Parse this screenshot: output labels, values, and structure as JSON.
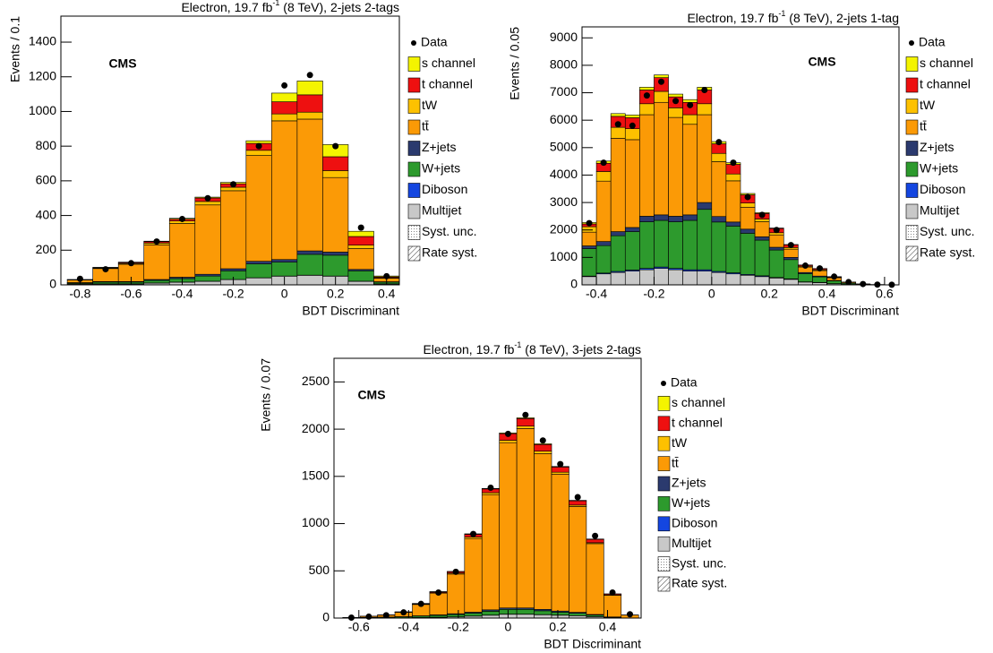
{
  "chart_data": [
    {
      "type": "histogram",
      "title": [
        "Electron, 19.7 fb",
        "-1",
        " (8 TeV), 2-jets 2-tags"
      ],
      "annotation": "CMS",
      "x_label": "BDT Discriminant",
      "y_label": "Events / 0.1",
      "bins": [
        -0.85,
        -0.75,
        -0.65,
        -0.55,
        -0.45,
        -0.35,
        -0.25,
        -0.15,
        -0.05,
        0.05,
        0.15,
        0.25,
        0.35,
        0.45
      ],
      "xlim": [
        -0.875,
        0.45
      ],
      "xticks": [
        -0.8,
        -0.6,
        -0.4,
        -0.2,
        0,
        0.2,
        0.4
      ],
      "ylim": [
        0,
        1550
      ],
      "yticks": [
        0,
        200,
        400,
        600,
        800,
        1000,
        1200,
        1400
      ],
      "data": {
        "name": "Data",
        "values": [
          35,
          90,
          125,
          250,
          380,
          500,
          580,
          800,
          1150,
          1210,
          800,
          330,
          50
        ]
      },
      "series": [
        {
          "name": "s channel",
          "color": "#f4f400",
          "values": [
            0,
            1,
            2,
            3,
            5,
            5,
            8,
            15,
            50,
            80,
            70,
            30,
            5
          ]
        },
        {
          "name": "t channel",
          "color": "#ee1010",
          "values": [
            1,
            3,
            5,
            8,
            10,
            20,
            20,
            40,
            70,
            100,
            80,
            50,
            5
          ]
        },
        {
          "name": "tW",
          "color": "#fdc100",
          "values": [
            2,
            3,
            5,
            10,
            15,
            20,
            20,
            30,
            40,
            40,
            40,
            20,
            3
          ]
        },
        {
          "name": "tt̄",
          "color": "#fb9a06",
          "values": [
            15,
            75,
            100,
            200,
            310,
            400,
            450,
            610,
            800,
            760,
            430,
            120,
            20
          ]
        },
        {
          "name": "Z+jets",
          "color": "#2b3a6e",
          "values": [
            2,
            3,
            3,
            5,
            8,
            10,
            12,
            15,
            15,
            20,
            18,
            8,
            2
          ]
        },
        {
          "name": "W+jets",
          "color": "#2d9a2d",
          "values": [
            5,
            10,
            10,
            15,
            20,
            30,
            50,
            80,
            80,
            120,
            120,
            60,
            10
          ]
        },
        {
          "name": "Diboson",
          "color": "#1446e0",
          "values": [
            1,
            1,
            1,
            1,
            1,
            1,
            1,
            1,
            1,
            1,
            1,
            1,
            1
          ]
        },
        {
          "name": "Multijet",
          "color": "#c8c8c8",
          "values": [
            5,
            5,
            5,
            10,
            15,
            20,
            30,
            40,
            50,
            55,
            50,
            20,
            5
          ]
        }
      ],
      "legend_extra": [
        "Syst. unc.",
        "Rate syst."
      ]
    },
    {
      "type": "histogram",
      "title": [
        "Electron, 19.7 fb",
        "-1",
        " (8 TeV), 2-jets 1-tag"
      ],
      "annotation": "CMS",
      "x_label": "BDT Discriminant",
      "y_label": "Events / 0.05",
      "bins": [
        -0.45,
        -0.4,
        -0.35,
        -0.3,
        -0.25,
        -0.2,
        -0.15,
        -0.1,
        -0.05,
        0,
        0.05,
        0.1,
        0.15,
        0.2,
        0.25,
        0.3,
        0.35,
        0.4,
        0.45,
        0.5,
        0.55,
        0.6,
        0.65
      ],
      "xlim": [
        -0.45,
        0.65
      ],
      "xticks": [
        -0.4,
        -0.2,
        0,
        0.2,
        0.4,
        0.6
      ],
      "ylim": [
        0,
        9400
      ],
      "yticks": [
        0,
        1000,
        2000,
        3000,
        4000,
        5000,
        6000,
        7000,
        8000,
        9000
      ],
      "data": {
        "name": "Data",
        "values": [
          2250,
          4450,
          5850,
          5800,
          6900,
          7400,
          6700,
          6550,
          7100,
          5200,
          4450,
          3200,
          2550,
          2000,
          1450,
          700,
          600,
          300,
          100,
          30,
          10,
          5
        ]
      },
      "series": [
        {
          "name": "s channel",
          "color": "#f4f400",
          "values": [
            50,
            80,
            100,
            100,
            100,
            100,
            100,
            100,
            100,
            80,
            60,
            50,
            30,
            20,
            10,
            5,
            5,
            3,
            1,
            0,
            0,
            0
          ]
        },
        {
          "name": "t channel",
          "color": "#ee1010",
          "values": [
            100,
            300,
            400,
            400,
            500,
            500,
            400,
            450,
            500,
            350,
            350,
            300,
            200,
            150,
            100,
            40,
            40,
            20,
            5,
            2,
            1,
            0
          ]
        },
        {
          "name": "tW",
          "color": "#fdc100",
          "values": [
            200,
            350,
            400,
            400,
            400,
            400,
            350,
            350,
            400,
            300,
            250,
            150,
            100,
            80,
            60,
            30,
            30,
            15,
            5,
            2,
            0,
            0
          ]
        },
        {
          "name": "tt̄",
          "color": "#fb9a06",
          "values": [
            500,
            2200,
            3400,
            3200,
            3700,
            4100,
            3600,
            3300,
            3200,
            2000,
            1500,
            800,
            550,
            450,
            300,
            200,
            200,
            100,
            30,
            10,
            3,
            1
          ]
        },
        {
          "name": "Z+jets",
          "color": "#2b3a6e",
          "values": [
            100,
            150,
            150,
            150,
            200,
            200,
            200,
            200,
            250,
            200,
            150,
            150,
            120,
            100,
            80,
            40,
            30,
            15,
            5,
            2,
            1,
            0
          ]
        },
        {
          "name": "W+jets",
          "color": "#2d9a2d",
          "values": [
            1000,
            1000,
            1300,
            1400,
            1700,
            1700,
            1700,
            1800,
            2200,
            1800,
            1700,
            1500,
            1300,
            1000,
            700,
            300,
            200,
            100,
            40,
            10,
            4,
            2
          ]
        },
        {
          "name": "Diboson",
          "color": "#1446e0",
          "values": [
            20,
            30,
            40,
            40,
            50,
            50,
            50,
            50,
            50,
            40,
            40,
            30,
            30,
            20,
            20,
            10,
            10,
            5,
            2,
            1,
            0,
            0
          ]
        },
        {
          "name": "Multijet",
          "color": "#c8c8c8",
          "values": [
            300,
            400,
            450,
            500,
            550,
            600,
            550,
            500,
            500,
            450,
            400,
            350,
            300,
            250,
            200,
            100,
            80,
            40,
            15,
            5,
            2,
            1
          ]
        }
      ],
      "legend_extra": [
        "Syst. unc.",
        "Rate syst."
      ]
    },
    {
      "type": "histogram",
      "title": [
        "Electron, 19.7 fb",
        "-1",
        " (8 TeV), 3-jets 2-tags"
      ],
      "annotation": "CMS",
      "x_label": "BDT Discriminant",
      "y_label": "Events / 0.07",
      "bins": [
        -0.665,
        -0.595,
        -0.525,
        -0.455,
        -0.385,
        -0.315,
        -0.245,
        -0.175,
        -0.105,
        -0.035,
        0.035,
        0.105,
        0.175,
        0.245,
        0.315,
        0.385,
        0.455,
        0.525
      ],
      "xlim": [
        -0.7,
        0.535
      ],
      "xticks": [
        -0.6,
        -0.4,
        -0.2,
        0,
        0.2,
        0.4
      ],
      "ylim": [
        0,
        2750
      ],
      "yticks": [
        0,
        500,
        1000,
        1500,
        2000,
        2500
      ],
      "data": {
        "name": "Data",
        "values": [
          5,
          15,
          30,
          60,
          150,
          270,
          490,
          890,
          1380,
          1950,
          2150,
          1880,
          1630,
          1280,
          870,
          270,
          40
        ]
      },
      "series": [
        {
          "name": "s channel",
          "color": "#f4f400",
          "values": [
            0,
            0,
            0,
            1,
            2,
            2,
            3,
            5,
            5,
            8,
            8,
            8,
            6,
            5,
            4,
            1,
            0
          ]
        },
        {
          "name": "t channel",
          "color": "#ee1010",
          "values": [
            0,
            1,
            2,
            3,
            5,
            8,
            15,
            30,
            40,
            70,
            80,
            70,
            55,
            45,
            35,
            10,
            1
          ]
        },
        {
          "name": "tW",
          "color": "#fdc100",
          "values": [
            0,
            0,
            1,
            2,
            4,
            6,
            10,
            15,
            20,
            25,
            25,
            25,
            20,
            15,
            10,
            3,
            0
          ]
        },
        {
          "name": "tt̄",
          "color": "#fb9a06",
          "values": [
            5,
            12,
            20,
            45,
            120,
            230,
            420,
            780,
            1220,
            1750,
            1900,
            1650,
            1450,
            1120,
            750,
            230,
            30
          ]
        },
        {
          "name": "Z+jets",
          "color": "#2b3a6e",
          "values": [
            0,
            1,
            1,
            2,
            3,
            5,
            8,
            10,
            15,
            15,
            15,
            15,
            12,
            10,
            7,
            2,
            0
          ]
        },
        {
          "name": "W+jets",
          "color": "#2d9a2d",
          "values": [
            2,
            5,
            8,
            10,
            15,
            20,
            25,
            30,
            40,
            50,
            50,
            40,
            30,
            25,
            15,
            5,
            1
          ]
        },
        {
          "name": "Diboson",
          "color": "#1446e0",
          "values": [
            0,
            0,
            0,
            0,
            1,
            1,
            1,
            2,
            2,
            2,
            2,
            2,
            2,
            1,
            1,
            0,
            0
          ]
        },
        {
          "name": "Multijet",
          "color": "#c8c8c8",
          "values": [
            0,
            1,
            2,
            3,
            5,
            8,
            12,
            20,
            30,
            40,
            40,
            35,
            30,
            25,
            15,
            5,
            1
          ]
        }
      ],
      "legend_extra": [
        "Syst. unc.",
        "Rate syst."
      ]
    }
  ]
}
